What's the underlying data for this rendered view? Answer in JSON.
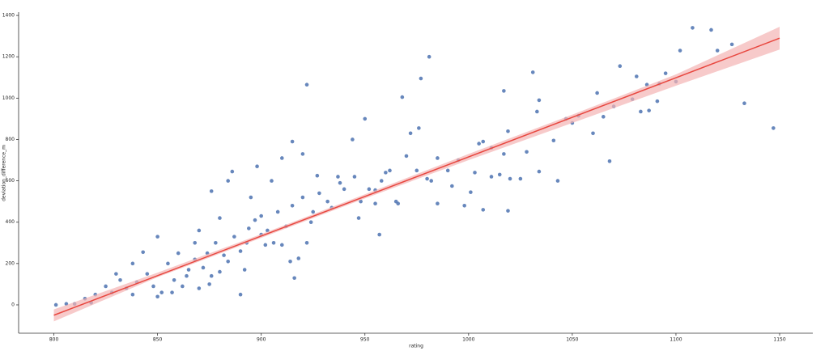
{
  "chart_data": {
    "type": "scatter",
    "xlabel": "rating",
    "ylabel": "deviation_difference_m",
    "xlim": [
      783,
      1166
    ],
    "ylim": [
      -137,
      1416
    ],
    "xticks": [
      800,
      850,
      900,
      950,
      1000,
      1050,
      1100,
      1150
    ],
    "yticks": [
      0,
      200,
      400,
      600,
      800,
      1000,
      1200,
      1400
    ],
    "points": {
      "color": "#4c72b0",
      "x": [
        922,
        981,
        977,
        1108,
        1117,
        1127,
        1102,
        1133,
        1147,
        1073,
        1062,
        1031,
        1017,
        1034,
        1033,
        1068,
        1043,
        1034,
        1020,
        1019,
        1007,
        1001,
        1007,
        1019,
        1015,
        1025,
        1041,
        1047,
        1053,
        1060,
        1065,
        1079,
        1081,
        1086,
        1083,
        1092,
        1095,
        1091,
        1087,
        950,
        968,
        976,
        985,
        972,
        960,
        955,
        957,
        947,
        944,
        934,
        915,
        920,
        910,
        898,
        886,
        884,
        876,
        870,
        893,
        890,
        875,
        900,
        905,
        925,
        940,
        937,
        927,
        980,
        1003,
        1011,
        992,
        998,
        990,
        1011,
        985,
        965,
        955,
        910,
        918,
        922,
        895,
        880,
        868,
        860,
        850,
        843,
        838,
        830,
        825,
        820,
        815,
        810,
        806,
        801,
        818,
        828,
        835,
        840,
        845,
        848,
        852,
        855,
        858,
        862,
        865,
        868,
        872,
        874,
        878,
        880,
        884,
        887,
        890,
        894,
        897,
        900,
        903,
        906,
        908,
        912,
        915,
        920,
        924,
        928,
        932,
        938,
        945,
        948,
        952,
        958,
        962,
        966,
        970,
        975,
        982,
        995,
        1005,
        1017,
        1028,
        1050,
        1070,
        1100,
        1120,
        870,
        857,
        850,
        832,
        838,
        864,
        876,
        882,
        892,
        902,
        914,
        916
      ],
      "values": [
        1065,
        1200,
        1095,
        1340,
        1330,
        1260,
        1230,
        975,
        855,
        1155,
        1025,
        1125,
        1035,
        990,
        935,
        695,
        600,
        645,
        610,
        455,
        460,
        545,
        790,
        840,
        630,
        610,
        795,
        900,
        915,
        830,
        910,
        995,
        1105,
        1065,
        935,
        1070,
        1120,
        985,
        940,
        900,
        1005,
        855,
        710,
        830,
        640,
        490,
        340,
        420,
        800,
        470,
        790,
        730,
        710,
        670,
        645,
        600,
        550,
        360,
        300,
        50,
        100,
        430,
        600,
        450,
        560,
        620,
        625,
        610,
        640,
        760,
        575,
        480,
        650,
        620,
        490,
        500,
        555,
        290,
        225,
        300,
        520,
        420,
        300,
        250,
        330,
        255,
        200,
        150,
        90,
        50,
        30,
        5,
        5,
        0,
        10,
        60,
        80,
        110,
        150,
        90,
        60,
        200,
        120,
        90,
        170,
        220,
        180,
        250,
        300,
        160,
        210,
        330,
        260,
        370,
        410,
        340,
        360,
        300,
        450,
        380,
        480,
        520,
        400,
        540,
        500,
        590,
        620,
        500,
        560,
        600,
        650,
        490,
        720,
        650,
        600,
        700,
        780,
        730,
        740,
        880,
        960,
        1080,
        1230,
        80,
        60,
        40,
        120,
        50,
        140,
        140,
        240,
        170,
        290,
        210,
        130
      ]
    },
    "fit": {
      "color": "#e8473f",
      "x": [
        800,
        1150
      ],
      "values": [
        -50,
        1290
      ]
    },
    "band": {
      "color": "#f4b4b4",
      "x": [
        800,
        850,
        900,
        950,
        1000,
        1050,
        1100,
        1150
      ],
      "lower": [
        -80,
        134,
        324,
        515,
        700,
        880,
        1060,
        1235
      ],
      "upper": [
        -22,
        156,
        342,
        535,
        730,
        920,
        1115,
        1345
      ]
    }
  }
}
